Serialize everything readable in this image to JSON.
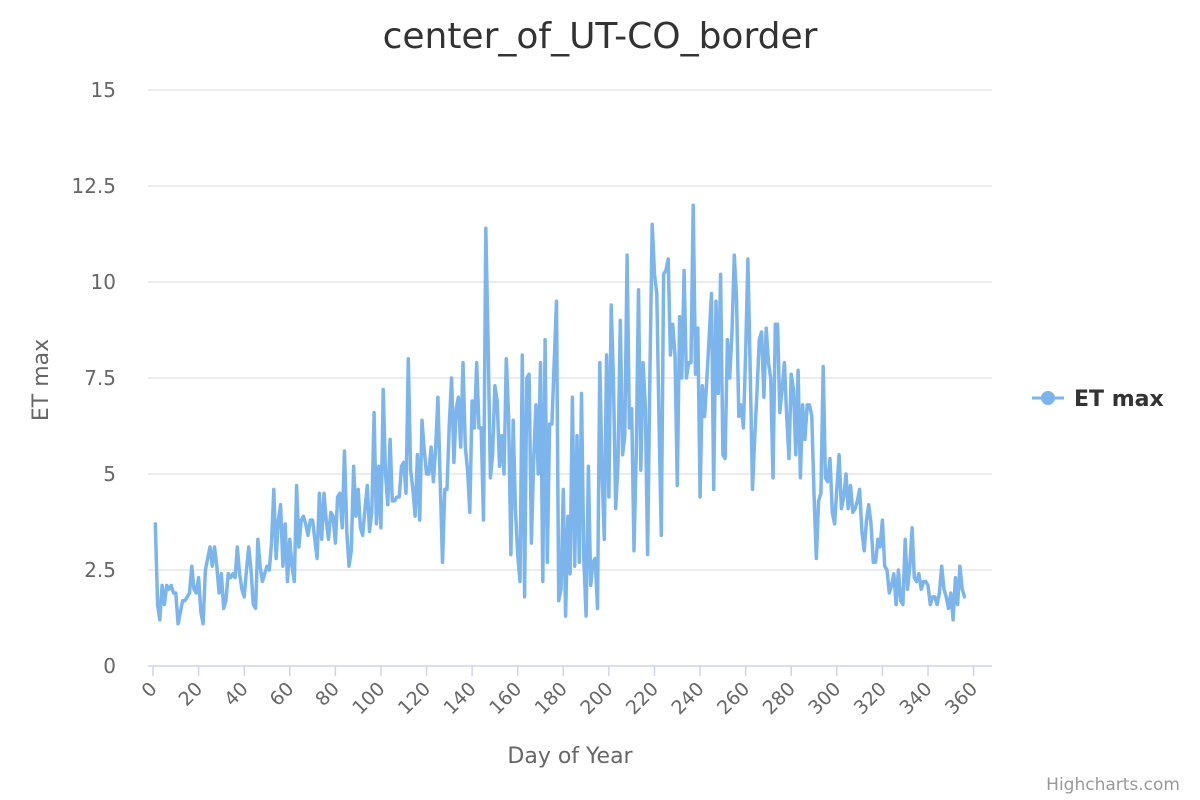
{
  "chart_data": {
    "type": "line",
    "title": "center_of_UT-CO_border",
    "xlabel": "Day of Year",
    "ylabel": "ET max",
    "xlim": [
      0,
      365
    ],
    "ylim": [
      0,
      15
    ],
    "x_ticks": [
      "0",
      "20",
      "40",
      "60",
      "80",
      "100",
      "120",
      "140",
      "160",
      "180",
      "200",
      "220",
      "240",
      "260",
      "280",
      "300",
      "320",
      "340",
      "360"
    ],
    "y_ticks": [
      "0",
      "2.5",
      "5",
      "7.5",
      "10",
      "12.5",
      "15"
    ],
    "grid": true,
    "legend_position": "right",
    "series": [
      {
        "name": "ET max",
        "color": "#7cb5ec",
        "values": [
          3.7,
          1.6,
          1.2,
          2.1,
          1.6,
          2.1,
          2.0,
          2.1,
          1.9,
          1.9,
          1.1,
          1.4,
          1.7,
          1.7,
          1.8,
          1.9,
          2.6,
          2.0,
          1.9,
          2.3,
          1.4,
          1.1,
          2.5,
          2.8,
          3.1,
          2.6,
          3.1,
          2.6,
          1.9,
          2.4,
          1.5,
          1.7,
          2.4,
          2.3,
          2.4,
          2.3,
          3.1,
          2.4,
          2.0,
          1.8,
          2.5,
          3.1,
          2.5,
          1.6,
          1.5,
          3.3,
          2.6,
          2.2,
          2.4,
          2.6,
          2.5,
          3.2,
          4.6,
          2.8,
          3.8,
          4.2,
          2.6,
          3.7,
          2.2,
          3.3,
          2.6,
          2.2,
          4.7,
          3.1,
          3.8,
          3.9,
          3.7,
          3.4,
          3.8,
          3.8,
          3.3,
          2.8,
          4.5,
          3.3,
          4.5,
          3.8,
          3.3,
          4.0,
          3.9,
          3.2,
          4.4,
          4.5,
          3.6,
          5.6,
          3.5,
          2.6,
          3.0,
          5.2,
          3.9,
          4.6,
          3.6,
          3.4,
          4.1,
          4.7,
          3.5,
          4.0,
          6.6,
          3.7,
          5.2,
          3.6,
          7.2,
          5.0,
          4.2,
          5.9,
          4.3,
          4.3,
          4.4,
          4.4,
          5.2,
          5.3,
          4.5,
          8.0,
          5.1,
          4.6,
          3.9,
          5.5,
          3.8,
          6.4,
          5.6,
          5.0,
          5.0,
          5.7,
          4.8,
          5.7,
          7.0,
          4.8,
          2.7,
          4.6,
          4.6,
          6.3,
          7.5,
          5.3,
          6.7,
          7.0,
          5.7,
          7.9,
          5.7,
          5.1,
          4.0,
          6.9,
          6.2,
          7.9,
          6.2,
          6.2,
          3.8,
          11.4,
          8.4,
          4.9,
          5.5,
          7.3,
          6.9,
          5.2,
          6.0,
          5.0,
          8.0,
          6.5,
          2.9,
          6.4,
          4.1,
          2.9,
          2.2,
          8.1,
          1.8,
          7.5,
          7.6,
          3.2,
          5.4,
          6.8,
          5.0,
          7.9,
          2.2,
          8.5,
          2.7,
          6.3,
          6.3,
          7.9,
          9.5,
          1.7,
          2.0,
          4.6,
          1.3,
          3.9,
          2.4,
          7.0,
          2.6,
          6.0,
          2.7,
          7.1,
          2.8,
          1.3,
          5.2,
          2.1,
          2.7,
          2.8,
          1.5,
          7.9,
          5.0,
          3.3,
          8.1,
          4.4,
          9.4,
          7.5,
          4.1,
          5.3,
          9.0,
          5.5,
          6.0,
          10.7,
          6.2,
          6.7,
          3.0,
          5.5,
          9.8,
          5.1,
          7.9,
          6.7,
          2.9,
          7.6,
          11.5,
          10.2,
          9.7,
          6.4,
          3.4,
          10.2,
          10.3,
          10.6,
          8.1,
          8.9,
          8.1,
          4.7,
          9.1,
          7.5,
          10.3,
          7.5,
          7.9,
          7.9,
          12.0,
          7.6,
          8.8,
          4.4,
          7.3,
          6.5,
          7.5,
          8.6,
          9.7,
          4.6,
          9.5,
          7.1,
          10.2,
          5.5,
          5.4,
          8.5,
          7.5,
          8.7,
          10.7,
          9.6,
          6.5,
          6.8,
          6.2,
          8.2,
          10.6,
          7.7,
          4.6,
          6.0,
          7.2,
          8.5,
          8.7,
          7.0,
          8.8,
          7.9,
          7.5,
          4.9,
          8.9,
          8.9,
          6.6,
          7.2,
          7.9,
          6.5,
          5.4,
          7.6,
          7.2,
          5.5,
          7.7,
          4.9,
          6.8,
          5.9,
          6.8,
          6.8,
          6.5,
          4.5,
          2.8,
          4.3,
          4.5,
          7.8,
          4.9,
          4.8,
          5.4,
          4.0,
          3.7,
          4.6,
          5.5,
          4.1,
          4.4,
          5.0,
          4.1,
          4.7,
          4.0,
          4.1,
          4.3,
          4.6,
          3.5,
          3.0,
          3.8,
          4.2,
          3.7,
          2.7,
          2.7,
          3.3,
          3.1,
          3.8,
          2.6,
          2.5,
          1.9,
          2.1,
          2.4,
          1.6,
          2.5,
          1.7,
          1.6,
          3.3,
          2.0,
          2.6,
          3.6,
          2.3,
          2.2,
          2.4,
          2.0,
          2.2,
          2.2,
          2.1,
          1.6,
          1.8,
          1.8,
          1.6,
          1.9,
          2.6,
          2.0,
          1.8,
          1.5,
          1.9,
          1.2,
          2.3,
          1.6,
          2.6,
          2.0,
          1.8
        ]
      }
    ]
  },
  "credits": "Highcharts.com"
}
